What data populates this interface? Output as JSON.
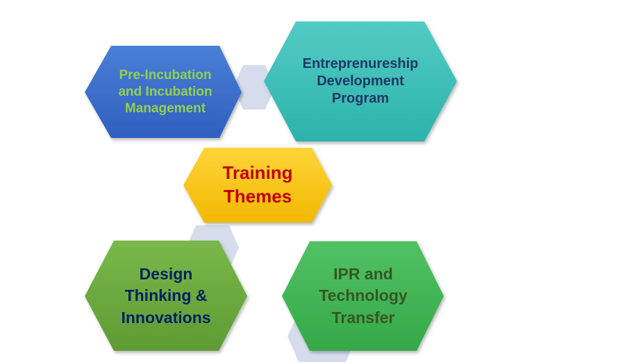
{
  "diagram": {
    "connectors": [
      "connector-top",
      "connector-middle",
      "connector-bottom-right"
    ],
    "nodes": [
      {
        "id": "pre-incubation",
        "label": "Pre-Incubation\nand Incubation\nManagement",
        "fill_top": "#4a7fd6",
        "fill_bottom": "#2f5fbe",
        "text_color": "#92d050"
      },
      {
        "id": "entrepreneurship",
        "label": "Entreprenureship\nDevelopment\nProgram",
        "fill_top": "#52cbc4",
        "fill_bottom": "#2cb3ab",
        "text_color": "#1f3864"
      },
      {
        "id": "training-themes",
        "label": "Training\nThemes",
        "fill_top": "#ffd43b",
        "fill_bottom": "#f2b800",
        "text_color": "#c00000"
      },
      {
        "id": "design-thinking",
        "label": "Design\nThinking &\nInnovations",
        "fill_top": "#79b84a",
        "fill_bottom": "#5e9b34",
        "text_color": "#002060"
      },
      {
        "id": "ipr",
        "label": "IPR and\nTechnology\nTransfer",
        "fill_top": "#52c264",
        "fill_bottom": "#34a848",
        "text_color": "#375623"
      }
    ]
  }
}
